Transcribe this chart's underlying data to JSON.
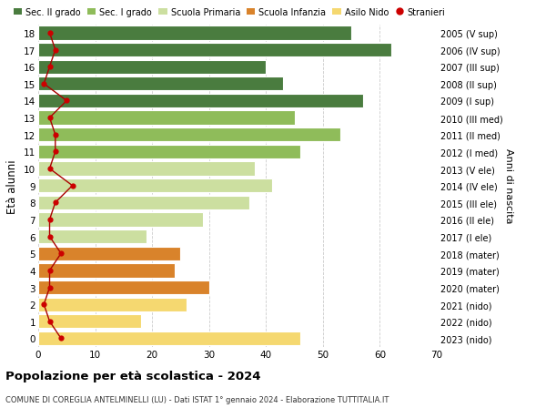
{
  "ages": [
    0,
    1,
    2,
    3,
    4,
    5,
    6,
    7,
    8,
    9,
    10,
    11,
    12,
    13,
    14,
    15,
    16,
    17,
    18
  ],
  "right_labels": [
    "2023 (nido)",
    "2022 (nido)",
    "2021 (nido)",
    "2020 (mater)",
    "2019 (mater)",
    "2018 (mater)",
    "2017 (I ele)",
    "2016 (II ele)",
    "2015 (III ele)",
    "2014 (IV ele)",
    "2013 (V ele)",
    "2012 (I med)",
    "2011 (II med)",
    "2010 (III med)",
    "2009 (I sup)",
    "2008 (II sup)",
    "2007 (III sup)",
    "2006 (IV sup)",
    "2005 (V sup)"
  ],
  "bar_values": [
    46,
    18,
    26,
    30,
    24,
    25,
    19,
    29,
    37,
    41,
    38,
    46,
    53,
    45,
    57,
    43,
    40,
    62,
    55
  ],
  "bar_colors": [
    "#f5d870",
    "#f5d870",
    "#f5d870",
    "#d9832b",
    "#d9832b",
    "#d9832b",
    "#ccdfa0",
    "#ccdfa0",
    "#ccdfa0",
    "#ccdfa0",
    "#ccdfa0",
    "#8fbc5a",
    "#8fbc5a",
    "#8fbc5a",
    "#4a7c3f",
    "#4a7c3f",
    "#4a7c3f",
    "#4a7c3f",
    "#4a7c3f"
  ],
  "stranieri_values": [
    4,
    2,
    1,
    2,
    2,
    4,
    2,
    2,
    3,
    6,
    2,
    3,
    3,
    2,
    5,
    1,
    2,
    3,
    2
  ],
  "xlim": [
    0,
    70
  ],
  "ylim": [
    -0.5,
    18.5
  ],
  "ylabel": "Età alunni",
  "xticks": [
    0,
    10,
    20,
    30,
    40,
    50,
    60,
    70
  ],
  "legend_labels": [
    "Sec. II grado",
    "Sec. I grado",
    "Scuola Primaria",
    "Scuola Infanzia",
    "Asilo Nido",
    "Stranieri"
  ],
  "legend_colors": [
    "#4a7c3f",
    "#8fbc5a",
    "#ccdfa0",
    "#d9832b",
    "#f5d870",
    "#cc0000"
  ],
  "title": "Popolazione per età scolastica - 2024",
  "subtitle": "COMUNE DI COREGLIA ANTELMINELLI (LU) - Dati ISTAT 1° gennaio 2024 - Elaborazione TUTTITALIA.IT",
  "right_axis_label": "Anni di nascita",
  "bg_color": "#ffffff",
  "bar_height": 0.82,
  "grid_color": "#cccccc"
}
